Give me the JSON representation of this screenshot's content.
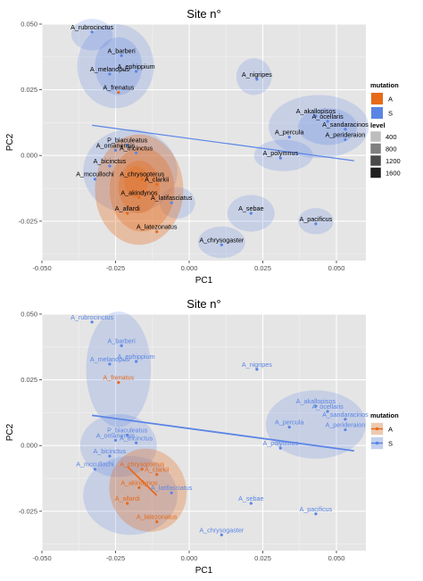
{
  "chart_data": [
    {
      "type": "scatter",
      "title": "Site n°",
      "xlabel": "PC1",
      "ylabel": "PC2",
      "xlim": [
        -0.05,
        0.06
      ],
      "ylim": [
        -0.04,
        0.05
      ],
      "x_ticks": [
        -0.05,
        -0.025,
        0.0,
        0.025,
        0.05
      ],
      "x_tick_labels": [
        "-0.050",
        "-0.025",
        "0.000",
        "0.025",
        "0.050"
      ],
      "y_ticks": [
        -0.025,
        0.0,
        0.025,
        0.05
      ],
      "y_tick_labels": [
        "-0.025",
        "0.000",
        "0.025",
        "0.050"
      ],
      "grid": true,
      "label_color": "#000000",
      "legend_position": "right",
      "legend": {
        "mutation_title": "mutation",
        "mutation_keys": [
          "A",
          "S"
        ],
        "level_title": "level",
        "level_keys": [
          "400",
          "800",
          "1200",
          "1600"
        ]
      },
      "series": [
        {
          "name": "A",
          "color": "#E66A1A",
          "points": [
            {
              "label": "A_clarkii",
              "x": -0.011,
              "y": -0.011
            },
            {
              "label": "A_akindynos",
              "x": -0.017,
              "y": -0.016
            },
            {
              "label": "A_allardi",
              "x": -0.021,
              "y": -0.022
            },
            {
              "label": "A_latezonatus",
              "x": -0.011,
              "y": -0.029
            },
            {
              "label": "A_chrysopterus",
              "x": -0.016,
              "y": -0.009
            },
            {
              "label": "A_frenatus",
              "x": -0.024,
              "y": 0.024
            }
          ]
        },
        {
          "name": "S",
          "color": "#5B85E5",
          "points": [
            {
              "label": "A_rubrocinctus",
              "x": -0.033,
              "y": 0.047
            },
            {
              "label": "A_barberi",
              "x": -0.023,
              "y": 0.038
            },
            {
              "label": "A_ephippium",
              "x": -0.018,
              "y": 0.032
            },
            {
              "label": "A_melanopus",
              "x": -0.027,
              "y": 0.031
            },
            {
              "label": "A_nigripes",
              "x": 0.023,
              "y": 0.029
            },
            {
              "label": "P_biaculeatus",
              "x": -0.021,
              "y": 0.004
            },
            {
              "label": "A_omanensis",
              "x": -0.025,
              "y": 0.002
            },
            {
              "label": "A_tricinctus",
              "x": -0.018,
              "y": 0.001
            },
            {
              "label": "A_bicinctus",
              "x": -0.027,
              "y": -0.004
            },
            {
              "label": "A_mccullochi",
              "x": -0.032,
              "y": -0.009
            },
            {
              "label": "A_latifasciatus",
              "x": -0.006,
              "y": -0.018
            },
            {
              "label": "A_sebae",
              "x": 0.021,
              "y": -0.022
            },
            {
              "label": "A_chrysogaster",
              "x": 0.011,
              "y": -0.034
            },
            {
              "label": "A_pacificus",
              "x": 0.043,
              "y": -0.026
            },
            {
              "label": "A_akallopisos",
              "x": 0.043,
              "y": 0.015
            },
            {
              "label": "A_ocellaris",
              "x": 0.047,
              "y": 0.013
            },
            {
              "label": "A_sandaracinos",
              "x": 0.053,
              "y": 0.01
            },
            {
              "label": "A_percula",
              "x": 0.034,
              "y": 0.007
            },
            {
              "label": "A_perideraion",
              "x": 0.053,
              "y": 0.006
            },
            {
              "label": "A_polymnus",
              "x": 0.031,
              "y": -0.001
            }
          ]
        }
      ],
      "fit_lines": [
        {
          "name": "S",
          "color": "#5B85E5",
          "x": [
            -0.033,
            0.056
          ],
          "y": [
            0.0115,
            -0.002
          ]
        }
      ]
    },
    {
      "type": "scatter",
      "title": "Site n°",
      "xlabel": "PC1",
      "ylabel": "PC2",
      "xlim": [
        -0.05,
        0.06
      ],
      "ylim": [
        -0.04,
        0.05
      ],
      "x_ticks": [
        -0.05,
        -0.025,
        0.0,
        0.025,
        0.05
      ],
      "x_tick_labels": [
        "-0.050",
        "-0.025",
        "0.000",
        "0.025",
        "0.050"
      ],
      "y_ticks": [
        -0.025,
        0.0,
        0.025,
        0.05
      ],
      "y_tick_labels": [
        "-0.025",
        "0.000",
        "0.025",
        "0.050"
      ],
      "grid": true,
      "label_color": "series",
      "legend_position": "right",
      "legend": {
        "mutation_title": "mutation",
        "mutation_keys": [
          "A",
          "S"
        ]
      },
      "series": [
        {
          "name": "A",
          "color": "#E66A1A",
          "points": [
            {
              "label": "A_clarkii",
              "x": -0.011,
              "y": -0.011
            },
            {
              "label": "A_akindynos",
              "x": -0.017,
              "y": -0.016
            },
            {
              "label": "A_allardi",
              "x": -0.021,
              "y": -0.022
            },
            {
              "label": "A_latezonatus",
              "x": -0.011,
              "y": -0.029
            },
            {
              "label": "A_chrysopterus",
              "x": -0.016,
              "y": -0.009
            },
            {
              "label": "A_frenatus",
              "x": -0.024,
              "y": 0.024
            }
          ]
        },
        {
          "name": "S",
          "color": "#5B85E5",
          "points": [
            {
              "label": "A_rubrocinctus",
              "x": -0.033,
              "y": 0.047
            },
            {
              "label": "A_barberi",
              "x": -0.023,
              "y": 0.038
            },
            {
              "label": "A_ephippium",
              "x": -0.018,
              "y": 0.032
            },
            {
              "label": "A_melanopus",
              "x": -0.027,
              "y": 0.031
            },
            {
              "label": "A_nigripes",
              "x": 0.023,
              "y": 0.029
            },
            {
              "label": "P_biaculeatus",
              "x": -0.021,
              "y": 0.004
            },
            {
              "label": "A_omanensis",
              "x": -0.025,
              "y": 0.002
            },
            {
              "label": "A_tricinctus",
              "x": -0.018,
              "y": 0.001
            },
            {
              "label": "A_bicinctus",
              "x": -0.027,
              "y": -0.004
            },
            {
              "label": "A_mccullochi",
              "x": -0.032,
              "y": -0.009
            },
            {
              "label": "A_latifasciatus",
              "x": -0.006,
              "y": -0.018
            },
            {
              "label": "A_sebae",
              "x": 0.021,
              "y": -0.022
            },
            {
              "label": "A_chrysogaster",
              "x": 0.011,
              "y": -0.034
            },
            {
              "label": "A_pacificus",
              "x": 0.043,
              "y": -0.026
            },
            {
              "label": "A_akallopisos",
              "x": 0.043,
              "y": 0.015
            },
            {
              "label": "A_ocellaris",
              "x": 0.047,
              "y": 0.013
            },
            {
              "label": "A_sandaracinos",
              "x": 0.053,
              "y": 0.01
            },
            {
              "label": "A_percula",
              "x": 0.034,
              "y": 0.007
            },
            {
              "label": "A_perideraion",
              "x": 0.053,
              "y": 0.006
            },
            {
              "label": "A_polymnus",
              "x": 0.031,
              "y": -0.001
            }
          ]
        }
      ],
      "fit_lines": [
        {
          "name": "S",
          "color": "#5B85E5",
          "x": [
            -0.033,
            0.056
          ],
          "y": [
            0.0115,
            -0.002
          ]
        },
        {
          "name": "A",
          "color": "#E66A1A",
          "x": [
            -0.021,
            -0.011
          ],
          "y": [
            -0.008,
            -0.019
          ]
        }
      ]
    }
  ]
}
